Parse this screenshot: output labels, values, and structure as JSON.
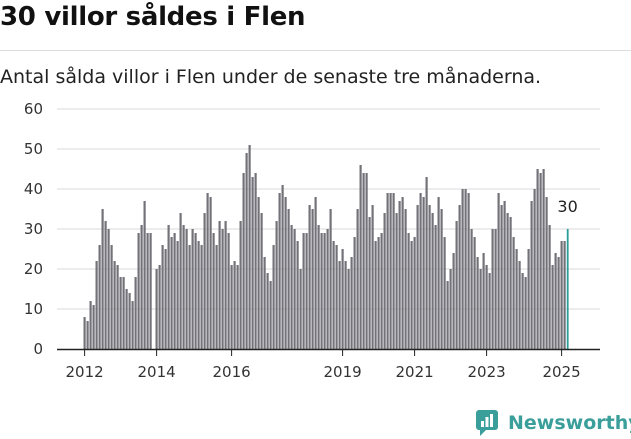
{
  "header": {
    "title": "30 villor såldes i Flen",
    "subtitle": "Antal sålda villor i Flen under de senaste tre månaderna."
  },
  "brand": {
    "name": "Newsworthy",
    "icon": "newsworthy-logo-icon"
  },
  "colors": {
    "bar": "#737278",
    "highlight": "#2a9d99",
    "grid": "#d9d9d9",
    "axis": "#222222"
  },
  "chart_data": {
    "type": "bar",
    "x_tick_labels": [
      "2012",
      "2014",
      "2016",
      "2019",
      "2021",
      "2023",
      "2025"
    ],
    "ylim": [
      0,
      60
    ],
    "y_ticks": [
      0,
      10,
      20,
      30,
      40,
      50,
      60
    ],
    "grid": true,
    "highlight_label": "30",
    "values": [
      8,
      7,
      12,
      11,
      22,
      26,
      35,
      32,
      30,
      26,
      22,
      21,
      18,
      18,
      15,
      14,
      12,
      18,
      29,
      31,
      37,
      29,
      29,
      0,
      20,
      21,
      26,
      25,
      31,
      28,
      29,
      27,
      34,
      31,
      30,
      26,
      30,
      29,
      27,
      26,
      34,
      39,
      38,
      29,
      26,
      32,
      30,
      32,
      29,
      21,
      22,
      21,
      32,
      44,
      49,
      51,
      43,
      44,
      38,
      34,
      23,
      19,
      17,
      26,
      32,
      39,
      41,
      38,
      35,
      31,
      30,
      27,
      20,
      29,
      29,
      36,
      35,
      38,
      31,
      29,
      29,
      30,
      35,
      27,
      26,
      22,
      25,
      22,
      20,
      23,
      28,
      35,
      46,
      44,
      44,
      33,
      36,
      27,
      28,
      29,
      34,
      39,
      39,
      39,
      34,
      37,
      38,
      35,
      29,
      27,
      28,
      36,
      39,
      38,
      43,
      36,
      34,
      31,
      38,
      35,
      28,
      17,
      20,
      24,
      32,
      36,
      40,
      40,
      39,
      30,
      28,
      23,
      20,
      24,
      21,
      19,
      30,
      30,
      39,
      36,
      37,
      34,
      33,
      28,
      25,
      22,
      19,
      18,
      25,
      37,
      40,
      45,
      44,
      45,
      38,
      31,
      21,
      24,
      23,
      27,
      27,
      30
    ]
  }
}
